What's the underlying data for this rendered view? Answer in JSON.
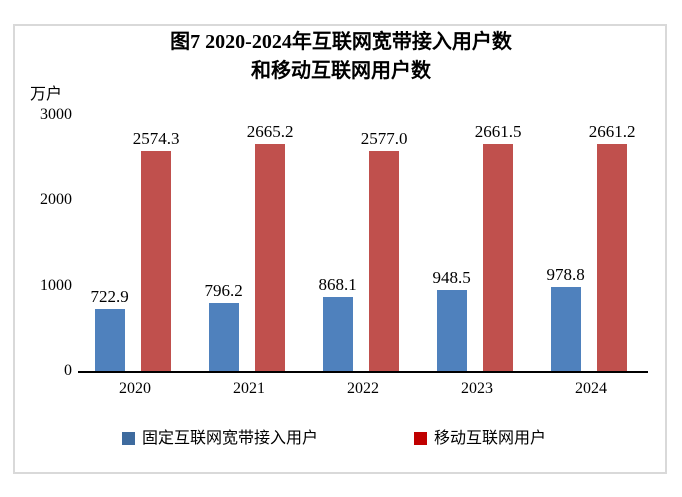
{
  "figure": {
    "title_line1": "图7 2020-2024年互联网宽带接入用户数",
    "title_line2": "和移动互联网用户数",
    "unit_label": "万户"
  },
  "legend": {
    "items": [
      {
        "label": "固定互联网宽带接入用户",
        "swatch_color": "#3e6b9e"
      },
      {
        "label": "移动互联网用户",
        "swatch_color": "#c00000"
      }
    ]
  },
  "colors": {
    "bar_blue": "#4f81bd",
    "bar_red": "#c0504d",
    "frame_border": "#d9d9d9",
    "axis_line": "#000000"
  },
  "chart_data": {
    "type": "bar",
    "title": "图7 2020-2024年互联网宽带接入用户数和移动互联网用户数",
    "categories": [
      "2020",
      "2021",
      "2022",
      "2023",
      "2024"
    ],
    "series": [
      {
        "name": "固定互联网宽带接入用户",
        "color": "#4f81bd",
        "values": [
          722.9,
          796.2,
          868.1,
          948.5,
          978.8
        ]
      },
      {
        "name": "移动互联网用户",
        "color": "#c0504d",
        "values": [
          2574.3,
          2665.2,
          2577.0,
          2661.5,
          2661.2
        ]
      }
    ],
    "value_label_decimals": 1,
    "xlabel": "",
    "ylabel": "万户",
    "ylim": [
      0,
      3000
    ],
    "yticks": [
      0,
      1000,
      2000,
      3000
    ],
    "grid": false,
    "legend_position": "bottom"
  }
}
